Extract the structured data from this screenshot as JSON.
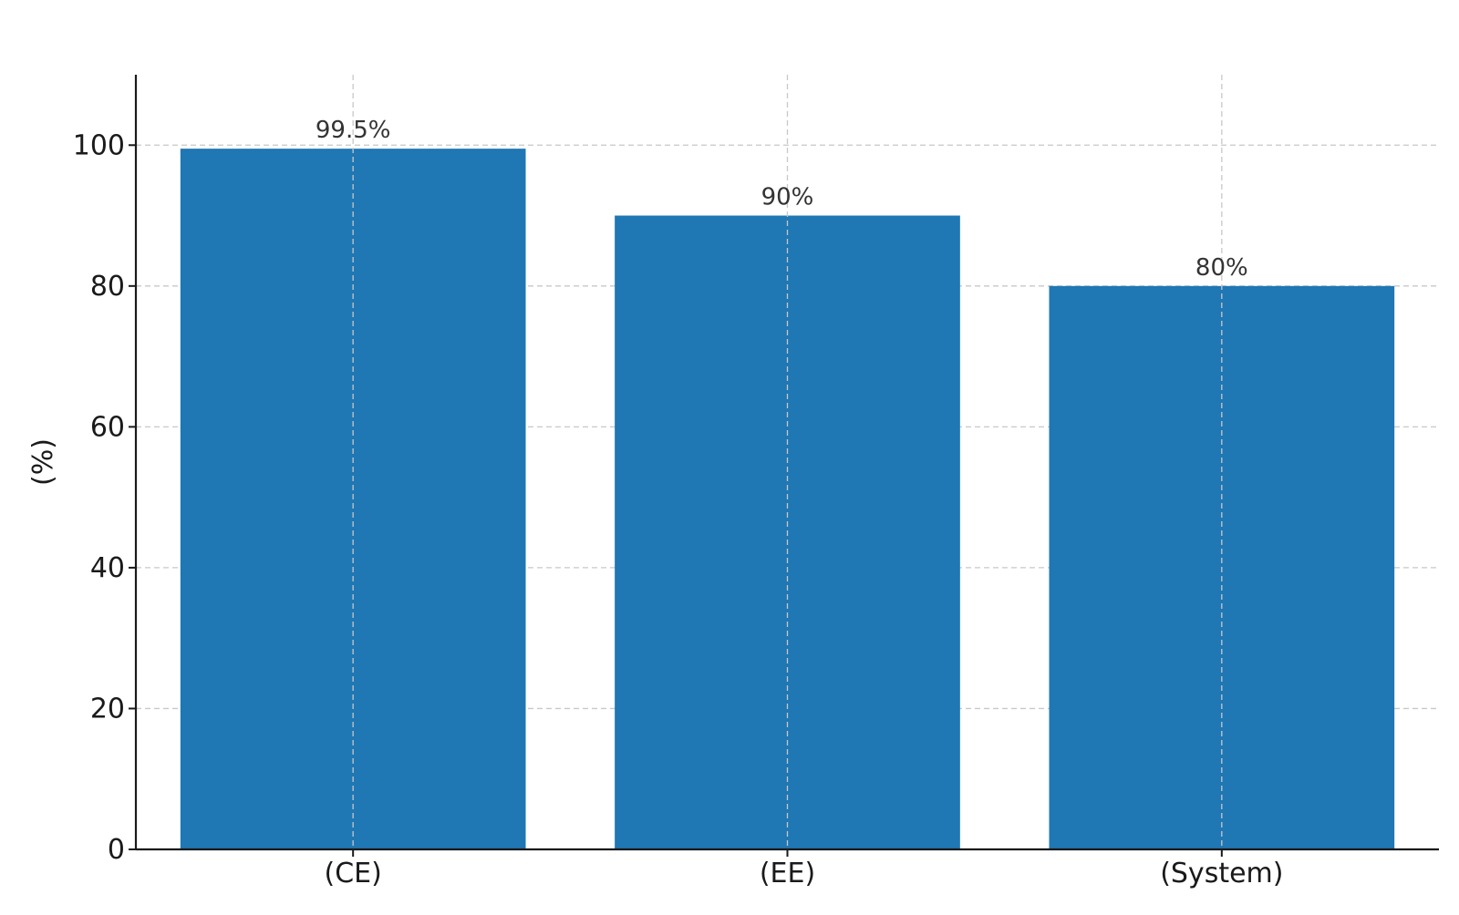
{
  "chart_data": {
    "type": "bar",
    "title": "",
    "xlabel": "",
    "ylabel": "(%)",
    "categories": [
      "(CE)",
      "(EE)",
      "(System)"
    ],
    "values": [
      99.5,
      90,
      80
    ],
    "value_labels": [
      "99.5%",
      "90%",
      "80%"
    ],
    "ylim": [
      0,
      110
    ],
    "yticks": [
      0,
      20,
      40,
      60,
      80,
      100
    ],
    "grid": true,
    "legend": "none",
    "colors": {
      "bar": "#1f77b4",
      "grid": "#c8c8c8",
      "axis": "#1a1a1a"
    }
  }
}
